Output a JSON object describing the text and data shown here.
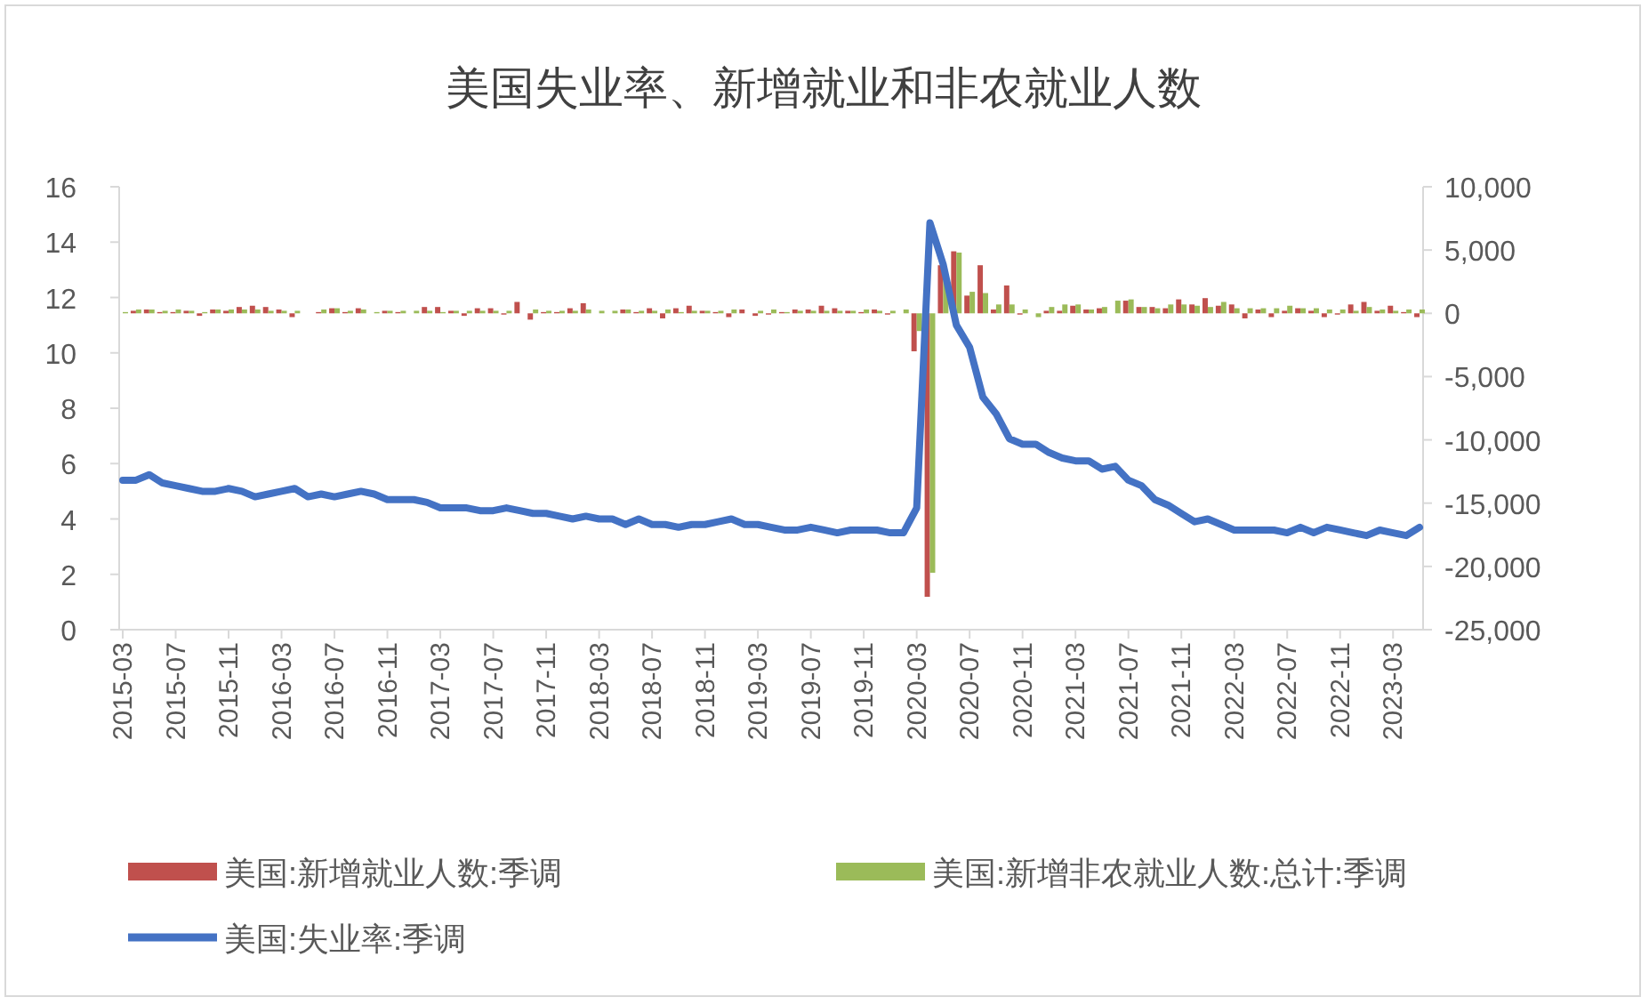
{
  "chart_data": {
    "type": "bar",
    "title": "美国失业率、新增就业和非农就业人数",
    "categories": [
      "2015-03",
      null,
      null,
      null,
      "2015-07",
      null,
      null,
      null,
      "2015-11",
      null,
      null,
      null,
      "2016-03",
      null,
      null,
      null,
      "2016-07",
      null,
      null,
      null,
      "2016-11",
      null,
      null,
      null,
      "2017-03",
      null,
      null,
      null,
      "2017-07",
      null,
      null,
      null,
      "2017-11",
      null,
      null,
      null,
      "2018-03",
      null,
      null,
      null,
      "2018-07",
      null,
      null,
      null,
      "2018-11",
      null,
      null,
      null,
      "2019-03",
      null,
      null,
      null,
      "2019-07",
      null,
      null,
      null,
      "2019-11",
      null,
      null,
      null,
      "2020-03",
      null,
      null,
      null,
      "2020-07",
      null,
      null,
      null,
      "2020-11",
      null,
      null,
      null,
      "2021-03",
      null,
      null,
      null,
      "2021-07",
      null,
      null,
      null,
      "2021-11",
      null,
      null,
      null,
      "2022-03",
      null,
      null,
      null,
      "2022-07",
      null,
      null,
      null,
      "2022-11",
      null,
      null,
      null,
      "2023-03",
      null,
      null
    ],
    "series": [
      {
        "name": "美国:新增就业人数:季调",
        "axis": "y2",
        "color": "#c0504d",
        "values": [
          0,
          200,
          300,
          100,
          100,
          200,
          -200,
          300,
          200,
          500,
          600,
          500,
          300,
          -300,
          0,
          100,
          400,
          100,
          400,
          0,
          200,
          100,
          0,
          500,
          500,
          200,
          -200,
          400,
          400,
          -100,
          900,
          -500,
          100,
          100,
          400,
          800,
          0,
          0,
          300,
          100,
          400,
          -400,
          400,
          600,
          200,
          100,
          -300,
          300,
          -200,
          -100,
          100,
          300,
          300,
          600,
          400,
          200,
          100,
          300,
          -100,
          0,
          -3000,
          -22400,
          3800,
          4900,
          1400,
          3800,
          300,
          2200,
          -100,
          0,
          200,
          200,
          600,
          300,
          400,
          0,
          1000,
          500,
          500,
          400,
          1100,
          700,
          1200,
          600,
          700,
          -400,
          300,
          -300,
          200,
          400,
          200,
          -300,
          -100,
          700,
          900,
          200,
          600,
          100,
          -300
        ]
      },
      {
        "name": "美国:新增非农就业人数:总计:季调",
        "axis": "y2",
        "color": "#9bbb59",
        "values": [
          100,
          300,
          300,
          200,
          300,
          200,
          100,
          300,
          300,
          300,
          300,
          200,
          200,
          200,
          0,
          300,
          400,
          200,
          300,
          100,
          200,
          200,
          200,
          200,
          100,
          200,
          200,
          200,
          200,
          200,
          0,
          300,
          200,
          200,
          200,
          300,
          200,
          200,
          300,
          200,
          200,
          300,
          100,
          200,
          200,
          200,
          300,
          0,
          200,
          300,
          100,
          200,
          200,
          200,
          200,
          200,
          300,
          200,
          200,
          300,
          -1400,
          -20500,
          2800,
          4800,
          1700,
          1600,
          700,
          700,
          300,
          -300,
          500,
          700,
          700,
          300,
          500,
          1000,
          1100,
          500,
          400,
          700,
          700,
          600,
          500,
          900,
          400,
          400,
          400,
          400,
          600,
          400,
          400,
          300,
          300,
          200,
          500,
          300,
          200,
          300,
          300
        ]
      },
      {
        "name": "美国:失业率:季调",
        "type": "line",
        "axis": "y",
        "color": "#4472c4",
        "values": [
          5.4,
          5.4,
          5.6,
          5.3,
          5.2,
          5.1,
          5.0,
          5.0,
          5.1,
          5.0,
          4.8,
          4.9,
          5.0,
          5.1,
          4.8,
          4.9,
          4.8,
          4.9,
          5.0,
          4.9,
          4.7,
          4.7,
          4.7,
          4.6,
          4.4,
          4.4,
          4.4,
          4.3,
          4.3,
          4.4,
          4.3,
          4.2,
          4.2,
          4.1,
          4.0,
          4.1,
          4.0,
          4.0,
          3.8,
          4.0,
          3.8,
          3.8,
          3.7,
          3.8,
          3.8,
          3.9,
          4.0,
          3.8,
          3.8,
          3.7,
          3.6,
          3.6,
          3.7,
          3.6,
          3.5,
          3.6,
          3.6,
          3.6,
          3.5,
          3.5,
          4.4,
          14.7,
          13.2,
          11.0,
          10.2,
          8.4,
          7.8,
          6.9,
          6.7,
          6.7,
          6.4,
          6.2,
          6.1,
          6.1,
          5.8,
          5.9,
          5.4,
          5.2,
          4.7,
          4.5,
          4.2,
          3.9,
          4.0,
          3.8,
          3.6,
          3.6,
          3.6,
          3.6,
          3.5,
          3.7,
          3.5,
          3.7,
          3.6,
          3.5,
          3.4,
          3.6,
          3.5,
          3.4,
          3.7
        ]
      }
    ],
    "ylim": [
      0,
      16
    ],
    "yticks": [
      0,
      2,
      4,
      6,
      8,
      10,
      12,
      14,
      16
    ],
    "y2lim": [
      -25000,
      10000
    ],
    "y2ticks": [
      {
        "value": -25000,
        "label": "-25,000"
      },
      {
        "value": -20000,
        "label": "-20,000"
      },
      {
        "value": -15000,
        "label": "-15,000"
      },
      {
        "value": -10000,
        "label": "-10,000"
      },
      {
        "value": -5000,
        "label": "-5,000"
      },
      0,
      {
        "value": 5000,
        "label": "5,000"
      },
      {
        "value": 10000,
        "label": "10,000"
      }
    ],
    "legend": "bottom"
  }
}
